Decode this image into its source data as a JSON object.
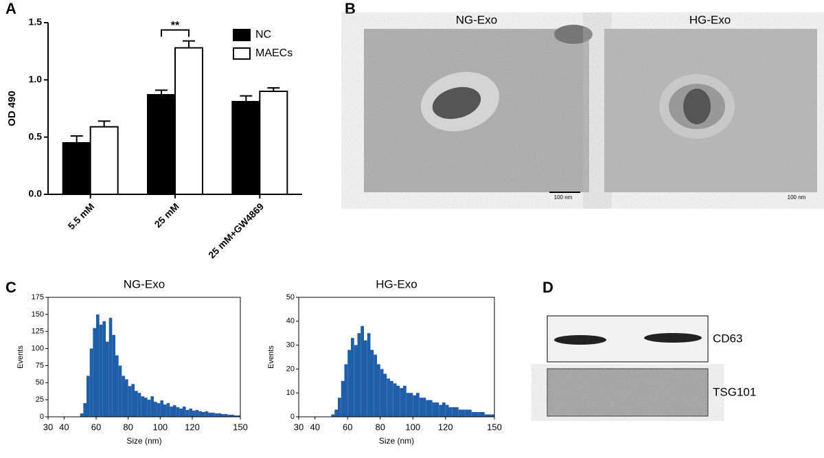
{
  "chart_data": [
    {
      "type": "bar",
      "panel": "A",
      "ylabel": "OD 490",
      "annotation": "**",
      "categories": [
        "5.5 mM",
        "25 mM",
        "25 mM+GW4869"
      ],
      "series": [
        {
          "name": "NC",
          "color": "#000000",
          "values": [
            0.45,
            0.87,
            0.81
          ],
          "errors": [
            0.06,
            0.04,
            0.05
          ]
        },
        {
          "name": "MAECs",
          "color": "#ffffff",
          "values": [
            0.59,
            1.28,
            0.9
          ],
          "errors": [
            0.05,
            0.06,
            0.03
          ]
        }
      ],
      "ylim": [
        0,
        1.5
      ],
      "yticks": [
        {
          "value": 0,
          "label": "0.0"
        },
        0.5,
        {
          "value": 1,
          "label": "1.0"
        },
        1.5
      ]
    },
    {
      "type": "histogram",
      "panel": "C",
      "title": "NG-Exo",
      "xlabel": "Size (nm)",
      "ylabel": "Events",
      "color": "#1f5ea8",
      "bins": [
        30,
        32,
        34,
        36,
        38,
        40,
        42,
        44,
        46,
        48,
        50,
        52,
        54,
        56,
        58,
        60,
        62,
        64,
        66,
        68,
        70,
        72,
        74,
        76,
        78,
        80,
        82,
        84,
        86,
        88,
        90,
        92,
        94,
        96,
        98,
        100,
        102,
        104,
        106,
        108,
        110,
        112,
        114,
        116,
        118,
        120,
        122,
        124,
        126,
        128,
        130,
        132,
        134,
        136,
        138,
        140,
        142,
        144,
        146,
        148,
        150
      ],
      "counts": [
        0,
        0,
        0,
        0,
        0,
        0,
        0,
        0,
        0,
        0,
        5,
        20,
        60,
        100,
        130,
        150,
        135,
        140,
        110,
        145,
        120,
        90,
        75,
        60,
        55,
        45,
        48,
        38,
        35,
        30,
        28,
        25,
        30,
        22,
        20,
        24,
        18,
        20,
        15,
        17,
        14,
        12,
        15,
        10,
        12,
        9,
        10,
        8,
        7,
        8,
        6,
        6,
        5,
        5,
        4,
        4,
        3,
        3,
        2,
        2
      ],
      "xlim": [
        30,
        150
      ],
      "xticks": [
        30,
        40,
        60,
        80,
        100,
        120,
        150
      ],
      "ylim": [
        0,
        175
      ],
      "yticks": [
        0,
        25,
        50,
        75,
        100,
        125,
        150,
        175
      ]
    },
    {
      "type": "histogram",
      "title": "HG-Exo",
      "xlabel": "Size (nm)",
      "ylabel": "Events",
      "color": "#1f5ea8",
      "bins": [
        30,
        32,
        34,
        36,
        38,
        40,
        42,
        44,
        46,
        48,
        50,
        52,
        54,
        56,
        58,
        60,
        62,
        64,
        66,
        68,
        70,
        72,
        74,
        76,
        78,
        80,
        82,
        84,
        86,
        88,
        90,
        92,
        94,
        96,
        98,
        100,
        102,
        104,
        106,
        108,
        110,
        112,
        114,
        116,
        118,
        120,
        122,
        124,
        126,
        128,
        130,
        132,
        134,
        136,
        138,
        140,
        142,
        144,
        146,
        148,
        150
      ],
      "counts": [
        0,
        0,
        0,
        0,
        0,
        0,
        0,
        0,
        0,
        0,
        1,
        3,
        8,
        15,
        22,
        28,
        33,
        30,
        35,
        38,
        32,
        35,
        28,
        26,
        22,
        20,
        18,
        16,
        15,
        14,
        13,
        12,
        13,
        10,
        10,
        9,
        10,
        8,
        8,
        7,
        7,
        6,
        6,
        5,
        6,
        5,
        4,
        4,
        4,
        3,
        3,
        3,
        3,
        2,
        2,
        2,
        2,
        1,
        1,
        1
      ],
      "xlim": [
        30,
        150
      ],
      "xticks": [
        30,
        40,
        60,
        80,
        100,
        120,
        150
      ],
      "ylim": [
        0,
        50
      ],
      "yticks": [
        0,
        10,
        20,
        30,
        40,
        50
      ]
    }
  ],
  "panel_b": {
    "label": "B",
    "titles": [
      "NG-Exo",
      "HG-Exo"
    ],
    "scale_label": "100 nm"
  },
  "panel_d": {
    "label": "D",
    "bands": [
      "CD63",
      "TSG101"
    ]
  }
}
